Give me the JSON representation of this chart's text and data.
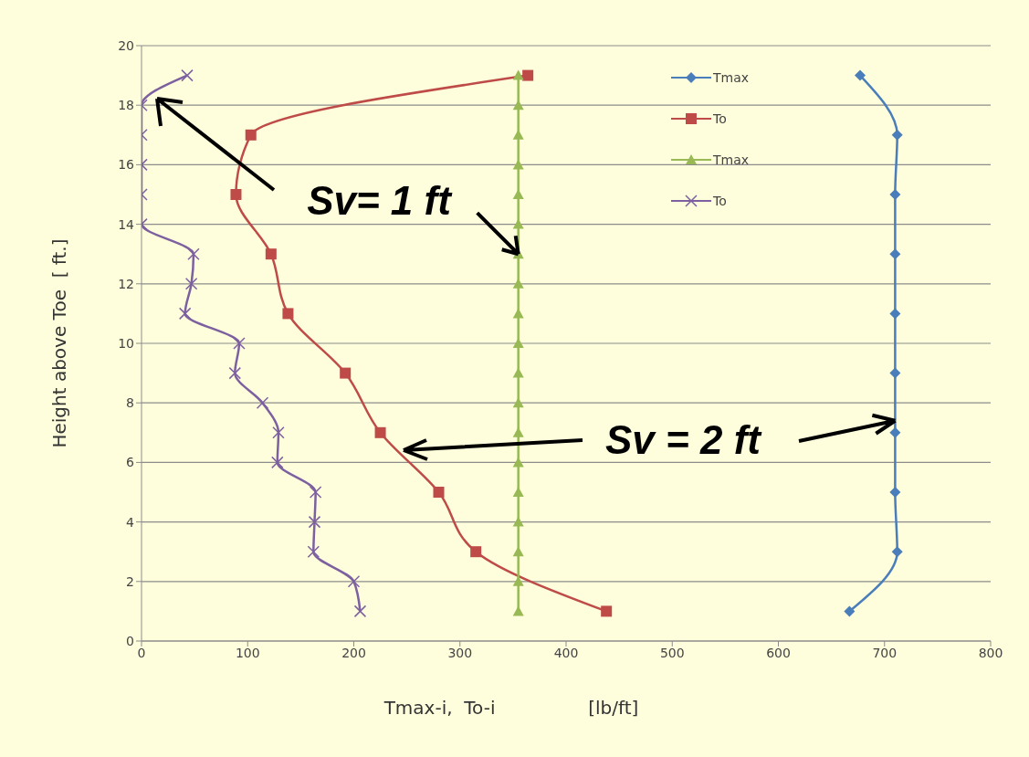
{
  "chart_data": {
    "type": "line",
    "xlabel": "Tmax-i,  To-i                [lb/ft]",
    "ylabel": "Height above Toe  [ ft.]",
    "xlim": [
      0,
      800
    ],
    "xticks": [
      0,
      100,
      200,
      300,
      400,
      500,
      600,
      700,
      800
    ],
    "ylim": [
      0,
      20
    ],
    "yticks": [
      0,
      2,
      4,
      6,
      8,
      10,
      12,
      14,
      16,
      18,
      20
    ],
    "grid": "y",
    "legend": "top right",
    "line_style": "solid",
    "series": [
      {
        "name": "Tmax",
        "color": "#4a7ebb",
        "marker": "diamond",
        "x": [
          677,
          712,
          710,
          710,
          710,
          710,
          710,
          710,
          712,
          667
        ],
        "values": [
          19,
          17,
          15,
          13,
          11,
          9,
          7,
          5,
          3,
          1
        ]
      },
      {
        "name": "To",
        "color": "#be4b48",
        "marker": "square",
        "x": [
          364,
          103,
          89,
          122,
          138,
          192,
          225,
          280,
          315,
          438
        ],
        "values": [
          19,
          17,
          15,
          13,
          11,
          9,
          7,
          5,
          3,
          1
        ]
      },
      {
        "name": "Tmax",
        "color": "#98b954",
        "marker": "triangle",
        "x": [
          355,
          355,
          355,
          355,
          355,
          355,
          355,
          355,
          355,
          355,
          355,
          355,
          355,
          355,
          355,
          355,
          355,
          355,
          355
        ],
        "values": [
          19,
          18,
          17,
          16,
          15,
          14,
          13,
          12,
          11,
          10,
          9,
          8,
          7,
          6,
          5,
          4,
          3,
          2,
          1
        ]
      },
      {
        "name": "To",
        "color": "#7d60a0",
        "marker": "cross",
        "x": [
          43,
          0,
          0,
          0,
          0,
          0,
          49,
          47,
          41,
          92,
          88,
          114,
          129,
          128,
          164,
          163,
          162,
          200,
          206
        ],
        "values": [
          19,
          18,
          17,
          16,
          15,
          14,
          13,
          12,
          11,
          10,
          9,
          8,
          7,
          6,
          5,
          4,
          3,
          2,
          1
        ]
      }
    ],
    "annotations": [
      {
        "text": "Sv= 1 ft",
        "x": 355,
        "y": 13
      },
      {
        "text": "Sv = 2 ft",
        "x": 710,
        "y": 7.4
      }
    ]
  }
}
